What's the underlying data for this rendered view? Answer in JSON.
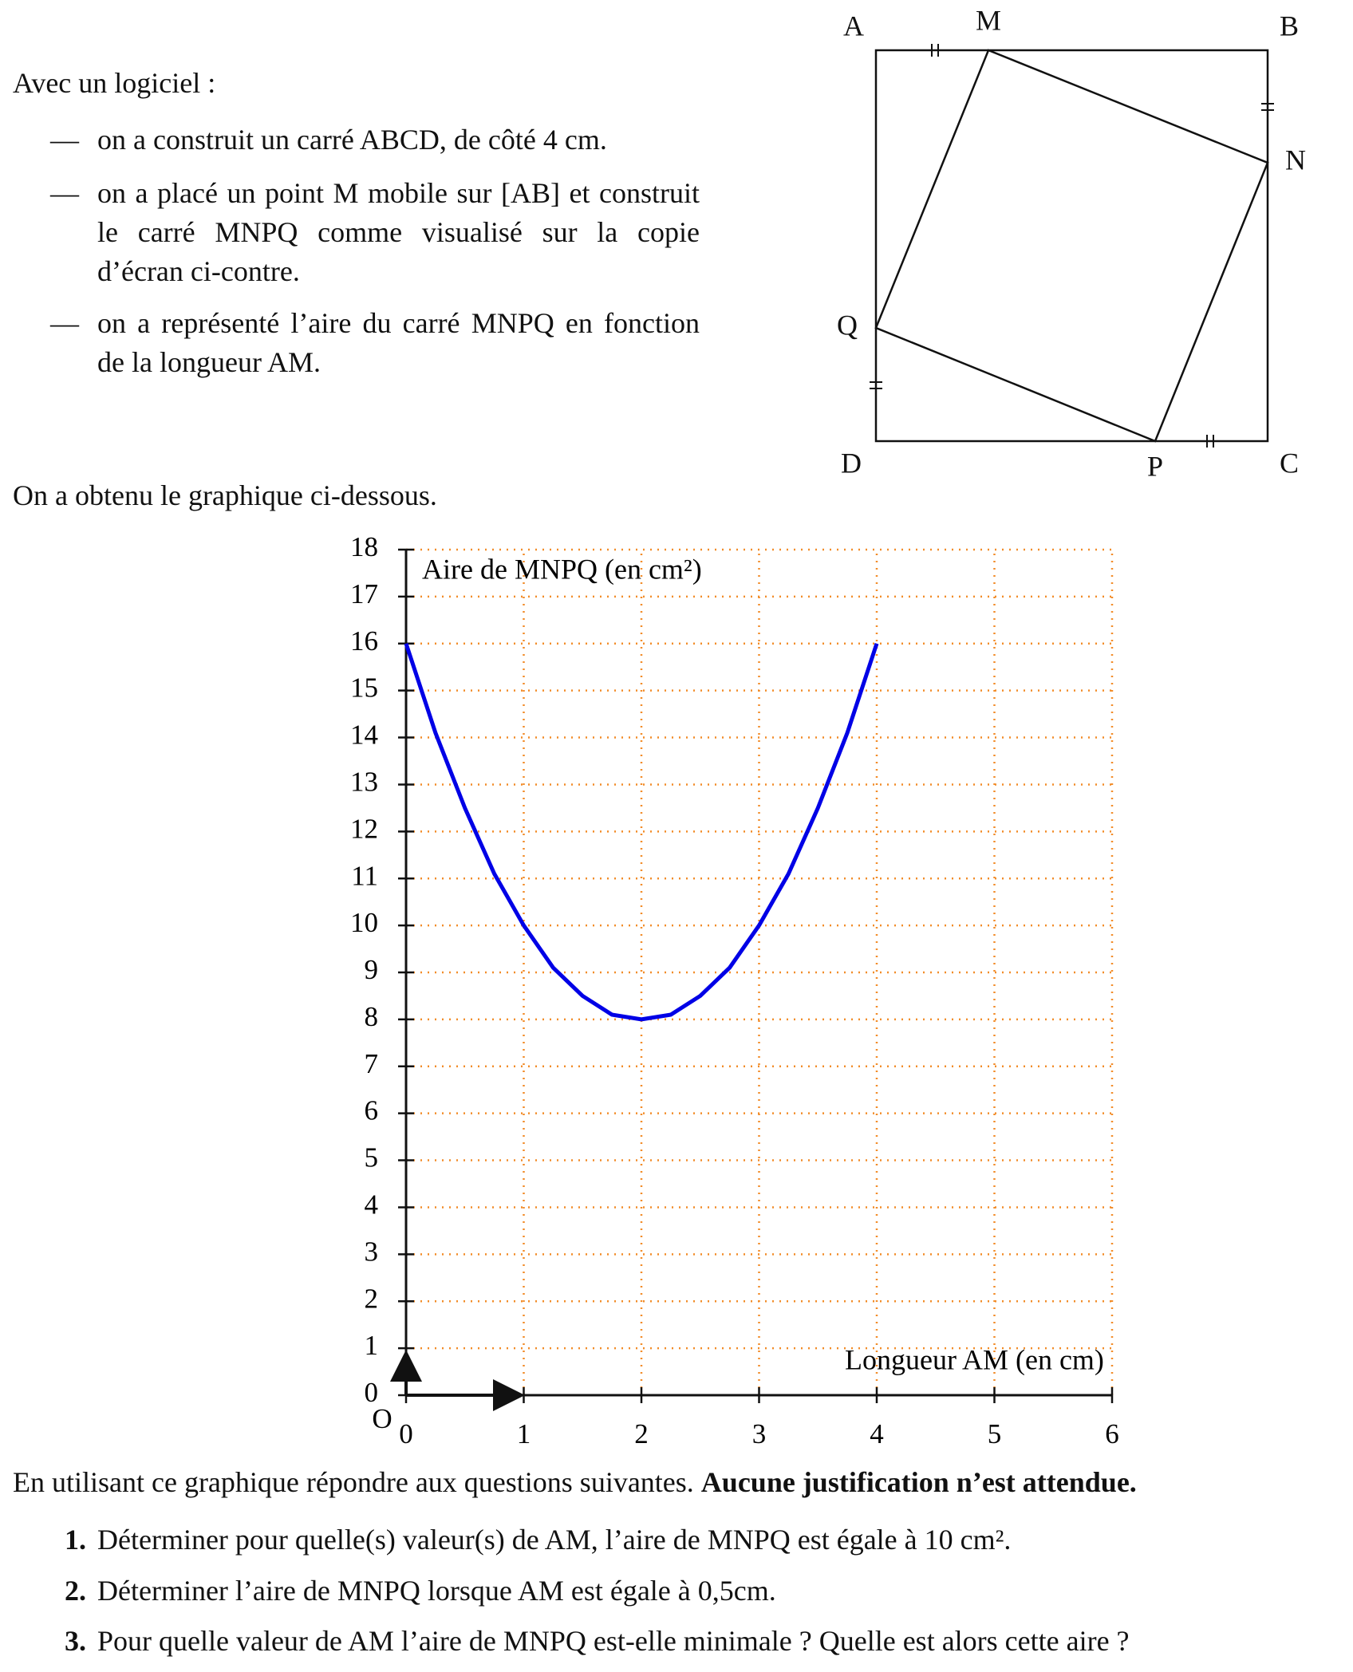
{
  "intro": "Avec un logiciel :",
  "bullet_marker": "—",
  "bullets": [
    "on a construit un carré ABCD, de côté 4 cm.",
    "on a placé un point M mobile sur [AB] et construit le carré MNPQ comme visualisé sur la copie d’écran ci-contre.",
    "on a représenté l’aire du carré MNPQ en fonction de la longueur AM."
  ],
  "figure": {
    "points": [
      "A",
      "M",
      "B",
      "N",
      "Q",
      "D",
      "P",
      "C"
    ]
  },
  "transition": "On a obtenu le graphique ci-dessous.",
  "chart_data": {
    "type": "line",
    "y_label": "Aire de MNPQ (en cm²)",
    "x_label": "Longueur AM (en cm)",
    "origin_label": "O",
    "x": [
      0,
      0.25,
      0.5,
      0.75,
      1,
      1.25,
      1.5,
      1.75,
      2,
      2.25,
      2.5,
      2.75,
      3,
      3.25,
      3.5,
      3.75,
      4
    ],
    "values": [
      16,
      14.1,
      12.5,
      11.1,
      10,
      9.1,
      8.5,
      8.1,
      8,
      8.1,
      8.5,
      9.1,
      10,
      11.1,
      12.5,
      14.1,
      16
    ],
    "color": "#0000e6",
    "xlim": [
      0,
      6
    ],
    "ylim": [
      0,
      18
    ],
    "xticks": [
      0,
      1,
      2,
      3,
      4,
      5,
      6
    ],
    "yticks": [
      0,
      1,
      2,
      3,
      4,
      5,
      6,
      7,
      8,
      9,
      10,
      11,
      12,
      13,
      14,
      15,
      16,
      17,
      18
    ],
    "grid": true,
    "grid_color": "#f28c28"
  },
  "instructions": {
    "text": "En utilisant ce graphique répondre aux questions suivantes.",
    "emphasis": "Aucune justification n’est attendue."
  },
  "questions": [
    {
      "number": "1.",
      "text": "Déterminer pour quelle(s) valeur(s) de AM, l’aire de MNPQ est égale à 10 cm²."
    },
    {
      "number": "2.",
      "text": "Déterminer l’aire de MNPQ lorsque AM est égale à 0,5cm."
    },
    {
      "number": "3.",
      "text": "Pour quelle valeur de AM l’aire de MNPQ est-elle minimale ? Quelle est alors cette aire ?"
    }
  ]
}
